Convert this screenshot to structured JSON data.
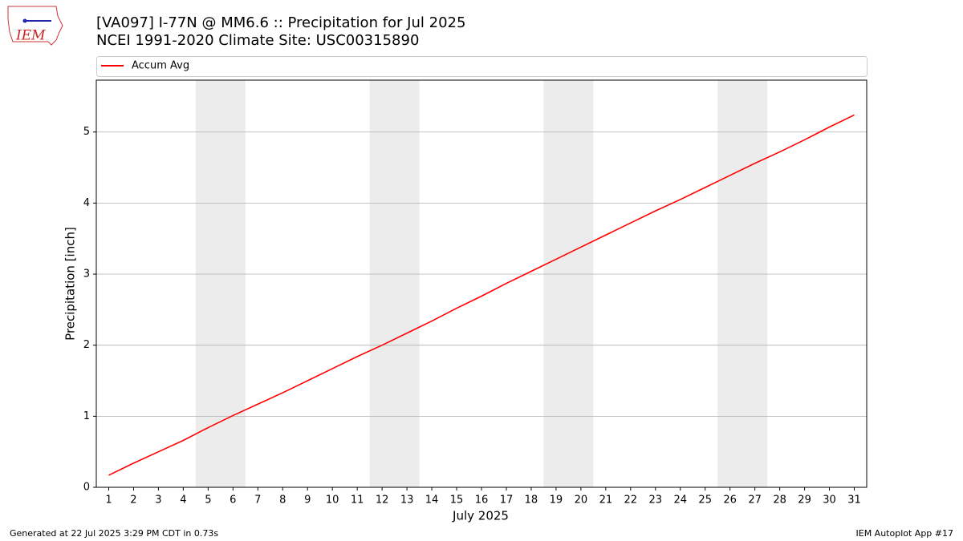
{
  "logo_text": "IEM",
  "chart_data": {
    "type": "line",
    "title": "[VA097] I-77N @ MM6.6 :: Precipitation for Jul 2025",
    "subtitle": "NCEI 1991-2020 Climate Site: USC00315890",
    "x_label": "July 2025",
    "y_label": "Precipitation [inch]",
    "x": [
      1,
      2,
      3,
      4,
      5,
      6,
      7,
      8,
      9,
      10,
      11,
      12,
      13,
      14,
      15,
      16,
      17,
      18,
      19,
      20,
      21,
      22,
      23,
      24,
      25,
      26,
      27,
      28,
      29,
      30,
      31
    ],
    "series": [
      {
        "name": "Accum Avg",
        "color": "#ff0000",
        "values": [
          0.17,
          0.34,
          0.5,
          0.66,
          0.84,
          1.01,
          1.17,
          1.33,
          1.5,
          1.67,
          1.84,
          2.0,
          2.17,
          2.34,
          2.52,
          2.69,
          2.87,
          3.04,
          3.21,
          3.38,
          3.55,
          3.72,
          3.89,
          4.05,
          4.22,
          4.39,
          4.56,
          4.72,
          4.89,
          5.07,
          5.24
        ]
      }
    ],
    "shaded_spans": [
      [
        4.5,
        6.5
      ],
      [
        11.5,
        13.5
      ],
      [
        18.5,
        20.5
      ],
      [
        25.5,
        27.5
      ]
    ],
    "shade_color": "#ececec",
    "xlim": [
      0.5,
      31.5
    ],
    "xticks": [
      1,
      2,
      3,
      4,
      5,
      6,
      7,
      8,
      9,
      10,
      11,
      12,
      13,
      14,
      15,
      16,
      17,
      18,
      19,
      20,
      21,
      22,
      23,
      24,
      25,
      26,
      27,
      28,
      29,
      30,
      31
    ],
    "ylim": [
      0,
      5.73
    ],
    "yticks": [
      0,
      1,
      2,
      3,
      4,
      5
    ],
    "grid": true,
    "legend": "top",
    "footer_left": "Generated at 22 Jul 2025 3:29 PM CDT in 0.73s",
    "footer_right": "IEM Autoplot App #17"
  }
}
